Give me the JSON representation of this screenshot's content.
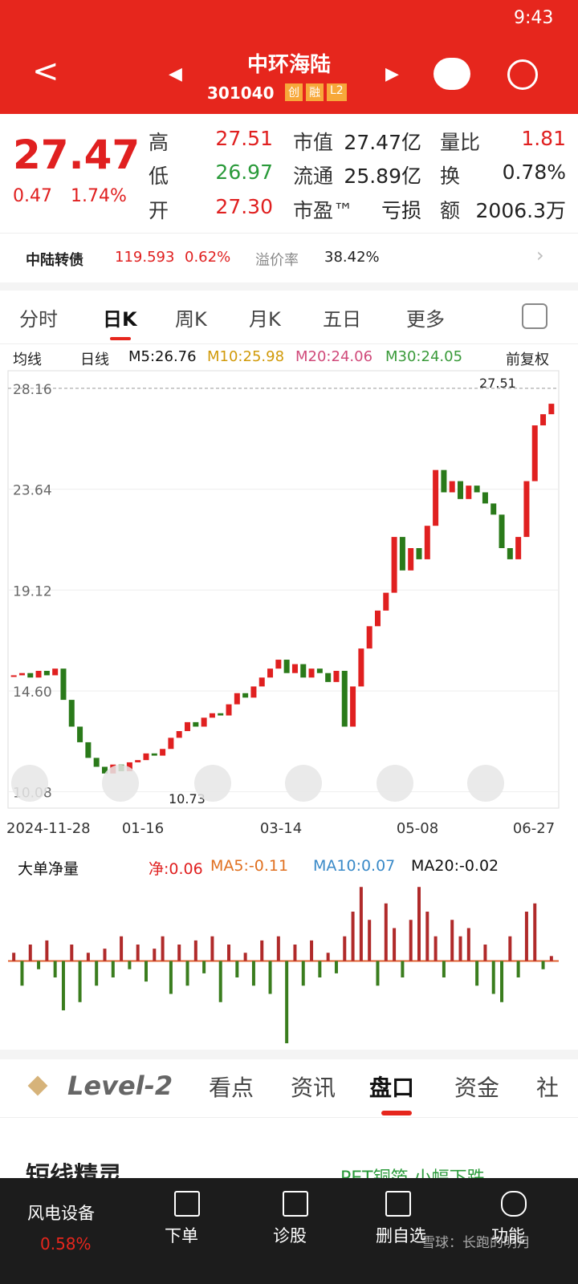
{
  "status": {
    "time": "9:43"
  },
  "header": {
    "title": "中环海陆",
    "code": "301040",
    "tags": [
      "创",
      "融",
      "L2"
    ]
  },
  "quote": {
    "price": "27.47",
    "change": "0.47",
    "pct": "1.74%",
    "rows": [
      [
        [
          "高",
          "27.51"
        ],
        [
          "市值",
          "27.47亿"
        ],
        [
          "量比",
          "1.81"
        ]
      ],
      [
        [
          "低",
          "26.97"
        ],
        [
          "流通",
          "25.89亿"
        ],
        [
          "换",
          "0.78%"
        ]
      ],
      [
        [
          "开",
          "27.30"
        ],
        [
          "市盈™",
          "亏损"
        ],
        [
          "额",
          "2006.3万"
        ]
      ]
    ]
  },
  "bond": {
    "name": "中陆转债",
    "price": "119.593",
    "pct": "0.62%",
    "label": "溢价率",
    "value": "38.42%"
  },
  "tabs": [
    "分时",
    "日K",
    "周K",
    "月K",
    "五日",
    "更多"
  ],
  "ma_legend": {
    "items": [
      "均线",
      "日线",
      "M5:26.76",
      "M10:25.98",
      "M20:24.06",
      "M30:24.05"
    ],
    "adjust": "前复权"
  },
  "kline": {
    "ylim": [
      9.6,
      28.84
    ],
    "yticks": [
      {
        "value": 28.16,
        "label": "28.16"
      },
      {
        "value": 23.64,
        "label": "23.64"
      },
      {
        "value": 19.12,
        "label": "19.12"
      },
      {
        "value": 14.6,
        "label": "14.60"
      },
      {
        "value": 10.08,
        "label": "10.08"
      }
    ],
    "high_label": "27.51",
    "low_label": "10.73",
    "dates": [
      "2024-11-28",
      "01-16",
      "03-14",
      "05-08",
      "06-27"
    ],
    "closes": [
      15.3,
      15.4,
      15.2,
      15.5,
      15.3,
      15.6,
      14.2,
      13.0,
      12.3,
      11.6,
      11.2,
      10.9,
      11.3,
      11.0,
      11.4,
      11.5,
      11.8,
      11.7,
      12.0,
      12.5,
      12.8,
      13.2,
      13.0,
      13.4,
      13.6,
      13.5,
      14.0,
      14.5,
      14.3,
      14.8,
      15.2,
      15.6,
      16.0,
      15.4,
      15.8,
      15.2,
      15.6,
      15.4,
      15.0,
      15.5,
      13.0,
      14.8,
      16.5,
      17.5,
      18.2,
      19.0,
      21.5,
      20.0,
      21.0,
      20.5,
      22.0,
      24.5,
      23.5,
      24.0,
      23.2,
      23.8,
      23.5,
      23.0,
      22.5,
      21.0,
      20.5,
      21.5,
      24.0,
      26.5,
      27.0,
      27.47
    ]
  },
  "flow": {
    "label": "大单净量",
    "items": [
      "净:0.06",
      "MA5:-0.11",
      "MA10:0.07",
      "MA20:-0.02"
    ],
    "ylim": [
      -1,
      1
    ],
    "values": [
      0.1,
      -0.3,
      0.2,
      -0.1,
      0.25,
      -0.2,
      -0.6,
      0.2,
      -0.5,
      0.1,
      -0.3,
      0.15,
      -0.2,
      0.3,
      -0.1,
      0.2,
      -0.25,
      0.15,
      0.3,
      -0.4,
      0.2,
      -0.3,
      0.25,
      -0.15,
      0.3,
      -0.5,
      0.2,
      -0.2,
      0.1,
      -0.3,
      0.25,
      -0.4,
      0.3,
      -1.0,
      0.2,
      -0.3,
      0.25,
      -0.2,
      0.1,
      -0.15,
      0.3,
      0.6,
      0.9,
      0.5,
      -0.3,
      0.7,
      0.4,
      -0.2,
      0.5,
      0.9,
      0.6,
      0.3,
      -0.2,
      0.5,
      0.3,
      0.4,
      -0.3,
      0.2,
      -0.4,
      -0.5,
      0.3,
      -0.2,
      0.6,
      0.7,
      -0.1,
      0.06
    ]
  },
  "bottom_tabs": [
    "Level-2",
    "看点",
    "资讯",
    "盘口",
    "资金",
    "社"
  ],
  "section": {
    "title": "短线精灵",
    "news": "PET铜箔 小幅下跌"
  },
  "nav": {
    "sector": "风电设备",
    "sector_pct": "0.58%",
    "items": [
      "下单",
      "诊股",
      "删自选",
      "功能"
    ],
    "watermark": "雪球：长跑的明月"
  }
}
